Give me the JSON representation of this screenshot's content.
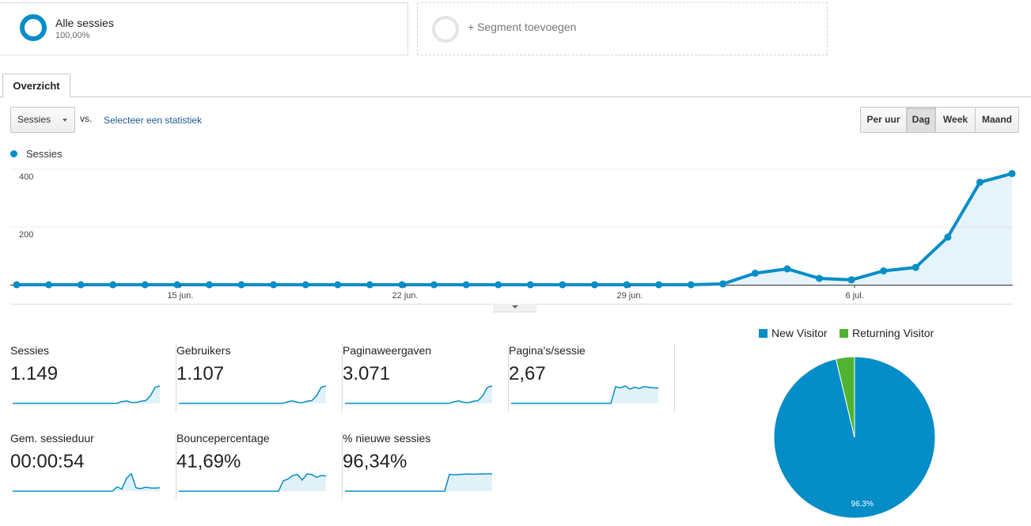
{
  "segments": {
    "all": {
      "name": "Alle sessies",
      "pct": "100,00%"
    },
    "add": {
      "label": "+ Segment toevoegen"
    }
  },
  "tabs": [
    {
      "label": "Overzicht"
    }
  ],
  "controls": {
    "metric": "Sessies",
    "vs": "vs.",
    "select_metric": "Selecteer een statistiek",
    "time_buttons": [
      {
        "label": "Per uur",
        "active": false
      },
      {
        "label": "Dag",
        "active": true
      },
      {
        "label": "Week",
        "active": false
      },
      {
        "label": "Maand",
        "active": false
      }
    ]
  },
  "chart_data": [
    {
      "type": "area",
      "series": [
        {
          "name": "Sessies",
          "values": [
            0,
            0,
            0,
            0,
            0,
            0,
            0,
            0,
            0,
            0,
            0,
            0,
            0,
            0,
            0,
            0,
            0,
            0,
            0,
            0,
            0,
            0,
            3,
            40,
            55,
            22,
            17,
            48,
            60,
            165,
            355,
            385
          ]
        }
      ],
      "x_tick_labels": [
        "15 jun.",
        "22 jun.",
        "29 jun.",
        "6 jul."
      ],
      "x_tick_index": [
        5,
        12,
        19,
        26
      ],
      "y_tick_labels": [
        "400",
        "200"
      ],
      "y_ticks": [
        400,
        200
      ],
      "ylim": [
        0,
        400
      ],
      "grid": true,
      "legend": "top-left",
      "color": "#058dc7"
    },
    {
      "type": "pie",
      "legend": "top",
      "slices": [
        {
          "name": "New Visitor",
          "value": 96.3,
          "label": "96.3%",
          "color": "#058dc7"
        },
        {
          "name": "Returning Visitor",
          "value": 3.7,
          "label": "",
          "color": "#50b432"
        }
      ]
    }
  ],
  "scorecards": [
    {
      "label": "Sessies",
      "value": "1.149",
      "spark": [
        0,
        0,
        0,
        0,
        0,
        0,
        0,
        0,
        0,
        0,
        0,
        0,
        0,
        0,
        0,
        0,
        0,
        0,
        0,
        0,
        0,
        0,
        3,
        40,
        55,
        22,
        17,
        48,
        60,
        165,
        355,
        385
      ]
    },
    {
      "label": "Gebruikers",
      "value": "1.107",
      "spark": [
        0,
        0,
        0,
        0,
        0,
        0,
        0,
        0,
        0,
        0,
        0,
        0,
        0,
        0,
        0,
        0,
        0,
        0,
        0,
        0,
        0,
        0,
        3,
        38,
        52,
        21,
        16,
        46,
        58,
        160,
        345,
        370
      ]
    },
    {
      "label": "Paginaweergaven",
      "value": "3.071",
      "spark": [
        0,
        0,
        0,
        0,
        0,
        0,
        0,
        0,
        0,
        0,
        0,
        0,
        0,
        0,
        0,
        0,
        0,
        0,
        0,
        0,
        0,
        0,
        8,
        100,
        150,
        60,
        45,
        130,
        160,
        440,
        950,
        1030
      ]
    },
    {
      "label": "Pagina's/sessie",
      "value": "2,67",
      "spark": [
        0,
        0,
        0,
        0,
        0,
        0,
        0,
        0,
        0,
        0,
        0,
        0,
        0,
        0,
        0,
        0,
        0,
        0,
        0,
        0,
        0,
        0,
        2.7,
        2.5,
        2.8,
        2.3,
        2.6,
        2.4,
        2.7,
        2.6,
        2.5,
        2.5
      ]
    },
    {
      "label": "Gem. sessieduur",
      "value": "00:00:54",
      "spark": [
        0,
        0,
        0,
        0,
        0,
        0,
        0,
        0,
        0,
        0,
        0,
        0,
        0,
        0,
        0,
        0,
        0,
        0,
        0,
        0,
        0,
        0,
        20,
        10,
        60,
        80,
        15,
        12,
        18,
        15,
        14,
        16
      ]
    },
    {
      "label": "Bouncepercentage",
      "value": "41,69%",
      "spark": [
        0,
        0,
        0,
        0,
        0,
        0,
        0,
        0,
        0,
        0,
        0,
        0,
        0,
        0,
        0,
        0,
        0,
        0,
        0,
        0,
        0,
        0,
        30,
        35,
        45,
        48,
        32,
        50,
        48,
        40,
        45,
        44
      ]
    },
    {
      "label": "% nieuwe sessies",
      "value": "96,34%",
      "spark": [
        0,
        0,
        0,
        0,
        0,
        0,
        0,
        0,
        0,
        0,
        0,
        0,
        0,
        0,
        0,
        0,
        0,
        0,
        0,
        0,
        0,
        0,
        95,
        92,
        94,
        96,
        97,
        96,
        97,
        97,
        98,
        98
      ]
    }
  ]
}
